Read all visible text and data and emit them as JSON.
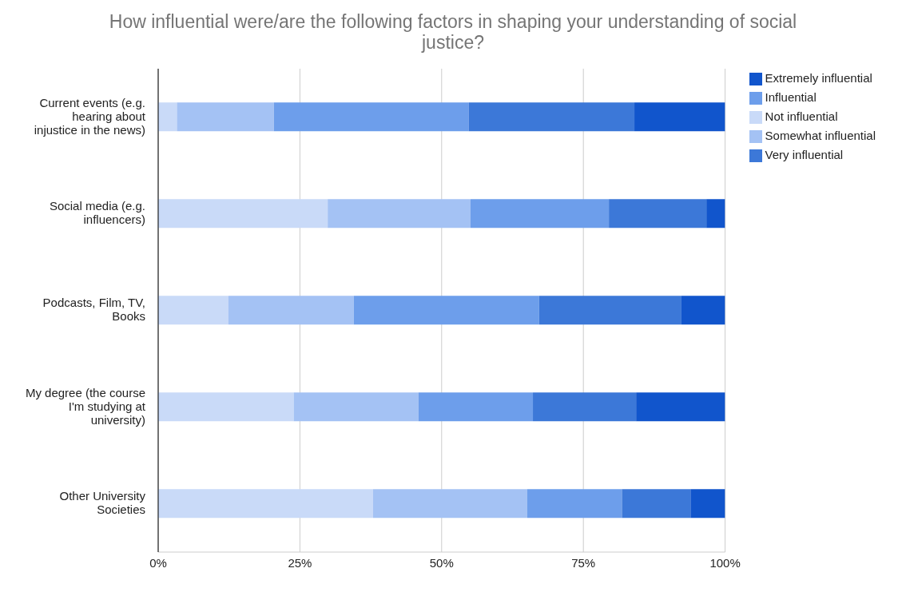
{
  "chart_data": {
    "type": "bar",
    "orientation": "horizontal",
    "stacked": true,
    "title": "How influential were/are the following factors in shaping your understanding of social justice?",
    "categories": [
      "Current events (e.g. hearing about injustice in the news)",
      "Social media (e.g. influencers)",
      "Podcasts, Film, TV, Books",
      "My degree (the course I'm studying at university)",
      "Other University Societies"
    ],
    "series": [
      {
        "name": "Not influential",
        "color": "#c9daf8",
        "values": [
          3.3,
          29.9,
          12.4,
          23.9,
          37.9
        ]
      },
      {
        "name": "Somewhat influential",
        "color": "#a4c2f4",
        "values": [
          17.1,
          25.2,
          22.1,
          22.0,
          27.2
        ]
      },
      {
        "name": "Influential",
        "color": "#6d9eeb",
        "values": [
          34.4,
          24.4,
          32.7,
          20.2,
          16.7
        ]
      },
      {
        "name": "Very influential",
        "color": "#3c78d8",
        "values": [
          29.2,
          17.2,
          25.1,
          18.2,
          12.1
        ]
      },
      {
        "name": "Extremely influential",
        "color": "#1155cc",
        "values": [
          16.0,
          3.3,
          7.7,
          15.7,
          6.1
        ]
      }
    ],
    "xlim": [
      0,
      100
    ],
    "xticks": [
      {
        "value": 0,
        "label": "0%"
      },
      {
        "value": 25,
        "label": "25%"
      },
      {
        "value": 50,
        "label": "50%"
      },
      {
        "value": 75,
        "label": "75%"
      },
      {
        "value": 100,
        "label": "100%"
      }
    ],
    "grid": "x",
    "legend": "top right"
  }
}
